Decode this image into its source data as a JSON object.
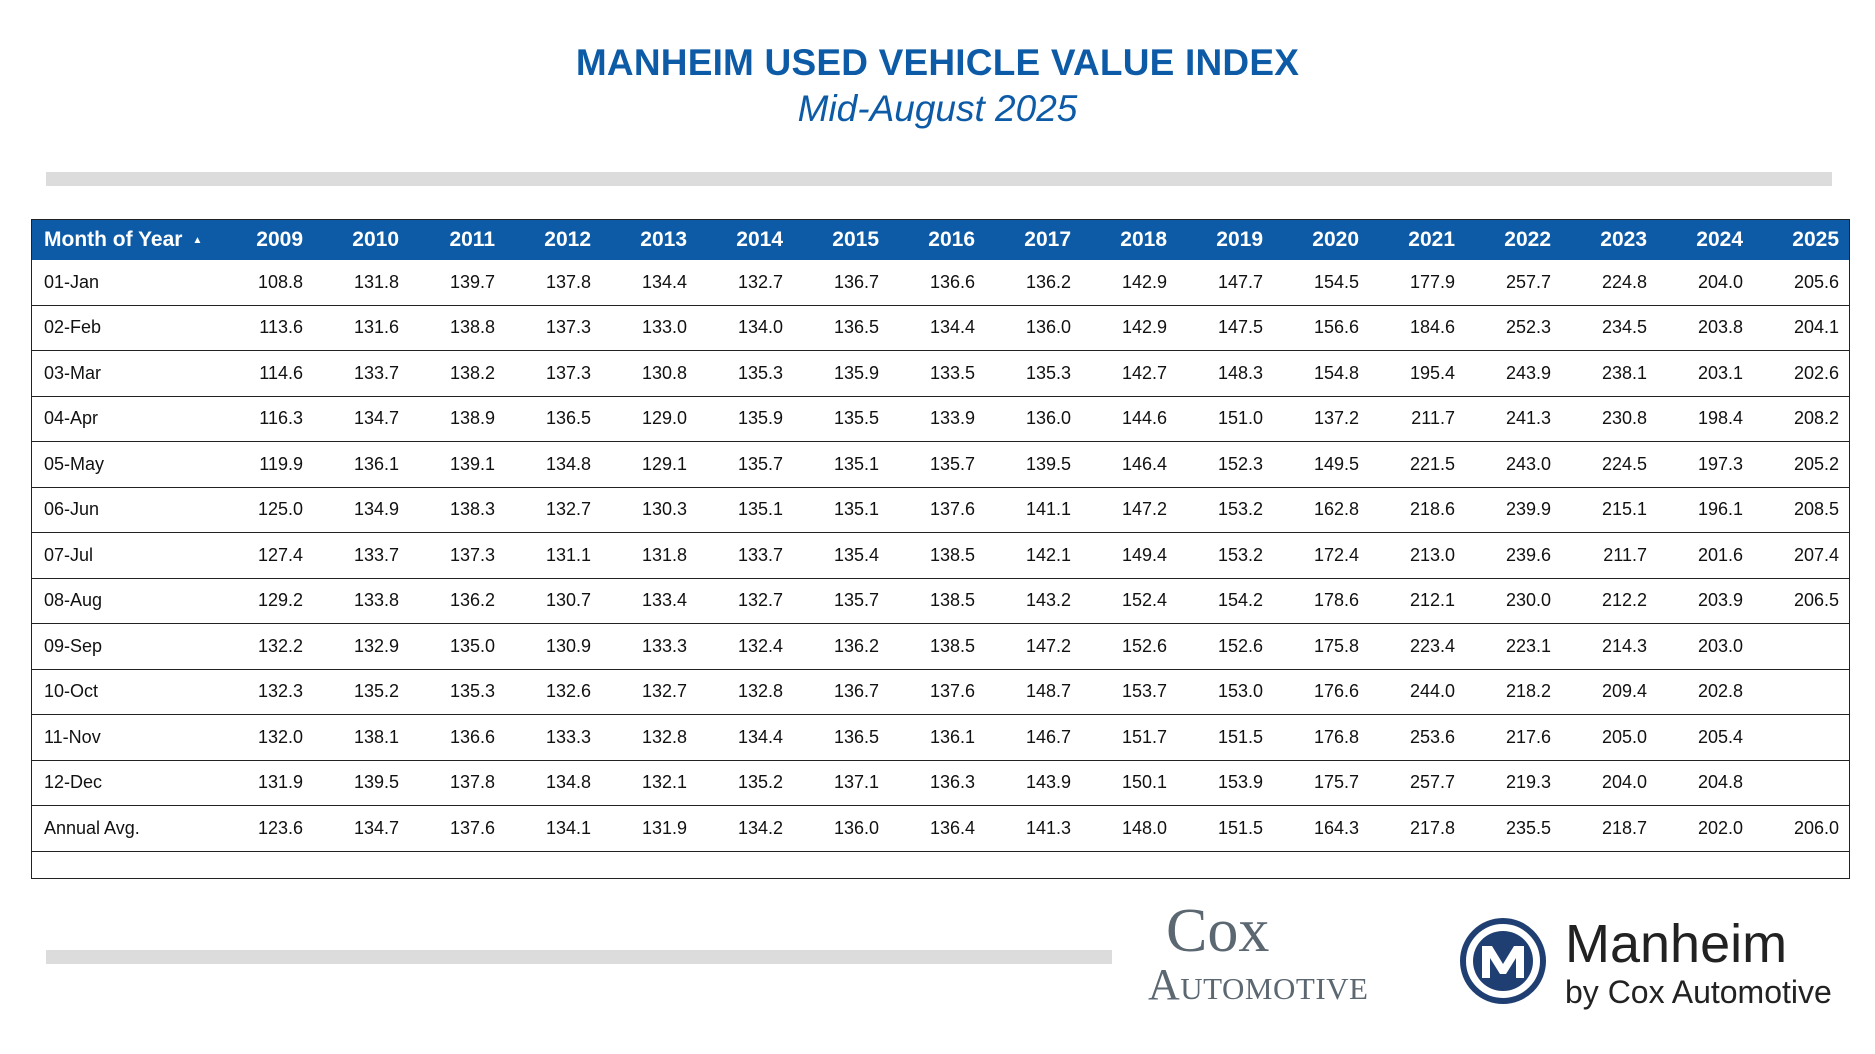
{
  "chart_data": {
    "type": "table",
    "title": "MANHEIM USED VEHICLE VALUE INDEX",
    "subtitle": "Mid-August 2025",
    "columns": [
      "Month of Year",
      "2009",
      "2010",
      "2011",
      "2012",
      "2013",
      "2014",
      "2015",
      "2016",
      "2017",
      "2018",
      "2019",
      "2020",
      "2021",
      "2022",
      "2023",
      "2024",
      "2025"
    ],
    "sort_indicator": "▲",
    "rows": [
      [
        "01-Jan",
        "108.8",
        "131.8",
        "139.7",
        "137.8",
        "134.4",
        "132.7",
        "136.7",
        "136.6",
        "136.2",
        "142.9",
        "147.7",
        "154.5",
        "177.9",
        "257.7",
        "224.8",
        "204.0",
        "205.6"
      ],
      [
        "02-Feb",
        "113.6",
        "131.6",
        "138.8",
        "137.3",
        "133.0",
        "134.0",
        "136.5",
        "134.4",
        "136.0",
        "142.9",
        "147.5",
        "156.6",
        "184.6",
        "252.3",
        "234.5",
        "203.8",
        "204.1"
      ],
      [
        "03-Mar",
        "114.6",
        "133.7",
        "138.2",
        "137.3",
        "130.8",
        "135.3",
        "135.9",
        "133.5",
        "135.3",
        "142.7",
        "148.3",
        "154.8",
        "195.4",
        "243.9",
        "238.1",
        "203.1",
        "202.6"
      ],
      [
        "04-Apr",
        "116.3",
        "134.7",
        "138.9",
        "136.5",
        "129.0",
        "135.9",
        "135.5",
        "133.9",
        "136.0",
        "144.6",
        "151.0",
        "137.2",
        "211.7",
        "241.3",
        "230.8",
        "198.4",
        "208.2"
      ],
      [
        "05-May",
        "119.9",
        "136.1",
        "139.1",
        "134.8",
        "129.1",
        "135.7",
        "135.1",
        "135.7",
        "139.5",
        "146.4",
        "152.3",
        "149.5",
        "221.5",
        "243.0",
        "224.5",
        "197.3",
        "205.2"
      ],
      [
        "06-Jun",
        "125.0",
        "134.9",
        "138.3",
        "132.7",
        "130.3",
        "135.1",
        "135.1",
        "137.6",
        "141.1",
        "147.2",
        "153.2",
        "162.8",
        "218.6",
        "239.9",
        "215.1",
        "196.1",
        "208.5"
      ],
      [
        "07-Jul",
        "127.4",
        "133.7",
        "137.3",
        "131.1",
        "131.8",
        "133.7",
        "135.4",
        "138.5",
        "142.1",
        "149.4",
        "153.2",
        "172.4",
        "213.0",
        "239.6",
        "211.7",
        "201.6",
        "207.4"
      ],
      [
        "08-Aug",
        "129.2",
        "133.8",
        "136.2",
        "130.7",
        "133.4",
        "132.7",
        "135.7",
        "138.5",
        "143.2",
        "152.4",
        "154.2",
        "178.6",
        "212.1",
        "230.0",
        "212.2",
        "203.9",
        "206.5"
      ],
      [
        "09-Sep",
        "132.2",
        "132.9",
        "135.0",
        "130.9",
        "133.3",
        "132.4",
        "136.2",
        "138.5",
        "147.2",
        "152.6",
        "152.6",
        "175.8",
        "223.4",
        "223.1",
        "214.3",
        "203.0",
        ""
      ],
      [
        "10-Oct",
        "132.3",
        "135.2",
        "135.3",
        "132.6",
        "132.7",
        "132.8",
        "136.7",
        "137.6",
        "148.7",
        "153.7",
        "153.0",
        "176.6",
        "244.0",
        "218.2",
        "209.4",
        "202.8",
        ""
      ],
      [
        "11-Nov",
        "132.0",
        "138.1",
        "136.6",
        "133.3",
        "132.8",
        "134.4",
        "136.5",
        "136.1",
        "146.7",
        "151.7",
        "151.5",
        "176.8",
        "253.6",
        "217.6",
        "205.0",
        "205.4",
        ""
      ],
      [
        "12-Dec",
        "131.9",
        "139.5",
        "137.8",
        "134.8",
        "132.1",
        "135.2",
        "137.1",
        "136.3",
        "143.9",
        "150.1",
        "153.9",
        "175.7",
        "257.7",
        "219.3",
        "204.0",
        "204.8",
        ""
      ],
      [
        "Annual Avg.",
        "123.6",
        "134.7",
        "137.6",
        "134.1",
        "131.9",
        "134.2",
        "136.0",
        "136.4",
        "141.3",
        "148.0",
        "151.5",
        "164.3",
        "217.8",
        "235.5",
        "218.7",
        "202.0",
        "206.0"
      ]
    ]
  },
  "logos": {
    "cox_word": "Cox",
    "cox_automotive": "Automotive",
    "manheim_word": "Manheim",
    "manheim_by": "by Cox Automotive"
  },
  "colors": {
    "brand_blue": "#0d5ba6",
    "logo_gray": "#5b6771",
    "bar_gray": "#dcdcdc"
  }
}
